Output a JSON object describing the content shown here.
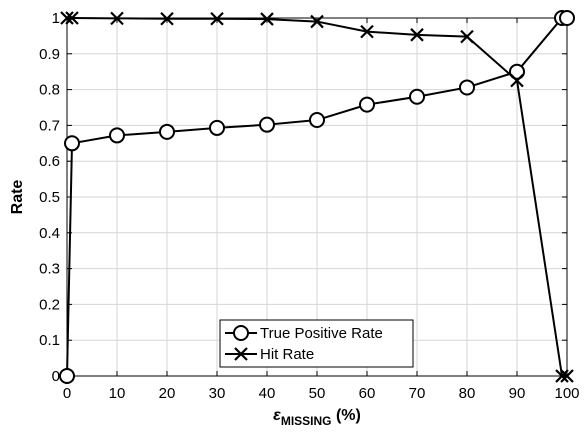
{
  "chart_data": {
    "type": "line",
    "xlabel_symbol": "ε",
    "xlabel_subscript": "MISSING",
    "xlabel_suffix": " (%)",
    "ylabel": "Rate",
    "xlim": [
      0,
      100
    ],
    "ylim": [
      0,
      1
    ],
    "x_ticks": [
      0,
      10,
      20,
      30,
      40,
      50,
      60,
      70,
      80,
      90,
      100
    ],
    "y_ticks": [
      0,
      0.1,
      0.2,
      0.3,
      0.4,
      0.5,
      0.6,
      0.7,
      0.8,
      0.9,
      1
    ],
    "x_tick_labels": [
      "0",
      "10",
      "20",
      "30",
      "40",
      "50",
      "60",
      "70",
      "80",
      "90",
      "100"
    ],
    "y_tick_labels": [
      "0",
      "0.1",
      "0.2",
      "0.3",
      "0.4",
      "0.5",
      "0.6",
      "0.7",
      "0.8",
      "0.9",
      "1"
    ],
    "grid": true,
    "legend_placement": "bottom-center",
    "series": [
      {
        "name": "True Positive Rate",
        "marker": "circle",
        "color": "#000000",
        "x": [
          0,
          1,
          10,
          20,
          30,
          40,
          50,
          60,
          70,
          80,
          90,
          99,
          100
        ],
        "y": [
          0,
          0.65,
          0.672,
          0.682,
          0.693,
          0.702,
          0.715,
          0.758,
          0.78,
          0.806,
          0.85,
          1.0,
          1.0
        ]
      },
      {
        "name": "Hit Rate",
        "marker": "x",
        "color": "#000000",
        "x": [
          0,
          1,
          10,
          20,
          30,
          40,
          50,
          60,
          70,
          80,
          90,
          99,
          100
        ],
        "y": [
          1.0,
          1.0,
          0.999,
          0.998,
          0.998,
          0.997,
          0.99,
          0.962,
          0.953,
          0.948,
          0.825,
          0,
          0
        ]
      }
    ]
  }
}
